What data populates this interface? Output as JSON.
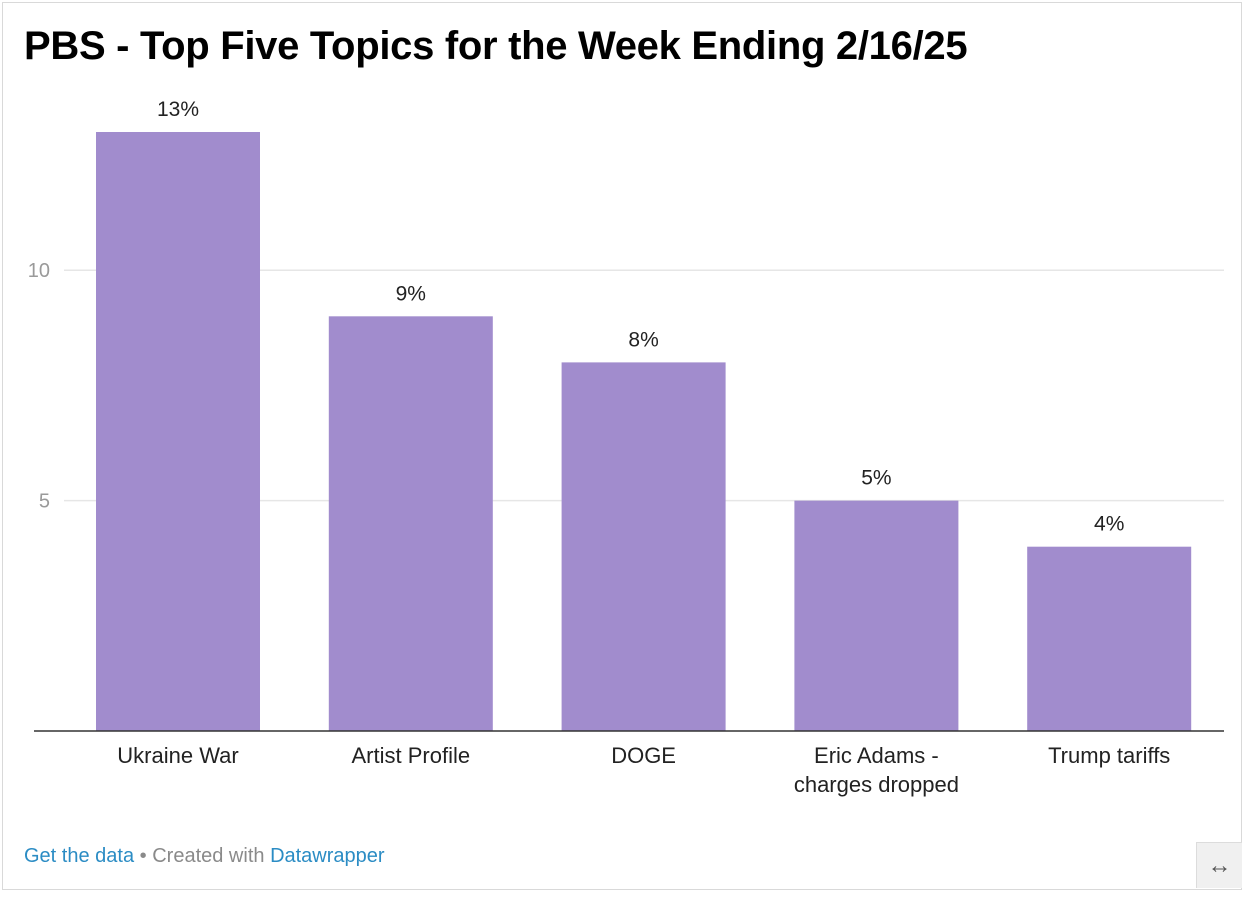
{
  "title": "PBS - Top Five Topics for the Week Ending 2/16/25",
  "footer": {
    "get_data": "Get the data",
    "separator": "•",
    "created_with": "Created with",
    "datawrapper": "Datawrapper"
  },
  "expand_icon": "↔",
  "colors": {
    "bar": "#a18ccd",
    "grid": "#e6e6e6",
    "baseline": "#333333",
    "tick_text": "#9a9a9a",
    "label_text": "#222222",
    "link": "#2b8cc4"
  },
  "chart_data": {
    "type": "bar",
    "categories": [
      [
        "Ukraine War"
      ],
      [
        "Artist Profile"
      ],
      [
        "DOGE"
      ],
      [
        "Eric Adams -",
        "charges dropped"
      ],
      [
        "Trump tariffs"
      ]
    ],
    "values": [
      13,
      9,
      8,
      5,
      4
    ],
    "value_labels": [
      "13%",
      "9%",
      "8%",
      "5%",
      "4%"
    ],
    "yticks": [
      5,
      10
    ],
    "ylim": [
      0,
      13
    ],
    "grid": true,
    "title": "PBS - Top Five Topics for the Week Ending 2/16/25",
    "xlabel": "",
    "ylabel": ""
  }
}
